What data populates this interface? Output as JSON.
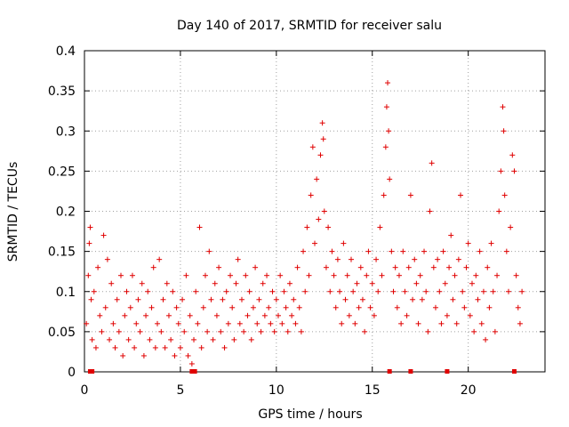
{
  "chart_data": {
    "type": "scatter",
    "title": "Day 140 of 2017, SRMTID for receiver salu",
    "xlabel": "GPS time / hours",
    "ylabel": "SRMTID / TECUs",
    "xlim": [
      0,
      24
    ],
    "ylim": [
      0,
      0.4
    ],
    "xticks": [
      0,
      5,
      10,
      15,
      20
    ],
    "yticks": [
      0,
      0.05,
      0.1,
      0.15,
      0.2,
      0.25,
      0.3,
      0.35,
      0.4
    ],
    "xtick_labels": [
      "0",
      "5",
      "10",
      "15",
      "20"
    ],
    "ytick_labels": [
      "0",
      "0.05",
      "0.1",
      "0.15",
      "0.2",
      "0.25",
      "0.3",
      "0.35",
      "0.4"
    ],
    "grid": true,
    "marker": "+",
    "color": "#e00000",
    "series": [
      {
        "name": "SRMTID",
        "points": [
          [
            0.1,
            0.06
          ],
          [
            0.2,
            0.12
          ],
          [
            0.25,
            0.16
          ],
          [
            0.3,
            0.18
          ],
          [
            0.35,
            0.09
          ],
          [
            0.4,
            0.04
          ],
          [
            0.5,
            0.1
          ],
          [
            0.6,
            0.03
          ],
          [
            0.7,
            0.13
          ],
          [
            0.8,
            0.07
          ],
          [
            0.9,
            0.05
          ],
          [
            1.0,
            0.17
          ],
          [
            1.1,
            0.08
          ],
          [
            1.2,
            0.14
          ],
          [
            1.3,
            0.04
          ],
          [
            1.4,
            0.11
          ],
          [
            1.5,
            0.06
          ],
          [
            1.6,
            0.03
          ],
          [
            1.7,
            0.09
          ],
          [
            1.8,
            0.05
          ],
          [
            1.9,
            0.12
          ],
          [
            2.0,
            0.02
          ],
          [
            2.1,
            0.07
          ],
          [
            2.2,
            0.1
          ],
          [
            2.3,
            0.04
          ],
          [
            2.4,
            0.08
          ],
          [
            2.5,
            0.12
          ],
          [
            2.6,
            0.03
          ],
          [
            2.7,
            0.06
          ],
          [
            2.8,
            0.09
          ],
          [
            2.9,
            0.05
          ],
          [
            3.0,
            0.11
          ],
          [
            3.1,
            0.02
          ],
          [
            3.2,
            0.07
          ],
          [
            3.3,
            0.1
          ],
          [
            3.4,
            0.04
          ],
          [
            3.5,
            0.08
          ],
          [
            3.6,
            0.13
          ],
          [
            3.7,
            0.03
          ],
          [
            3.8,
            0.06
          ],
          [
            3.9,
            0.14
          ],
          [
            4.0,
            0.05
          ],
          [
            4.1,
            0.09
          ],
          [
            4.2,
            0.03
          ],
          [
            4.3,
            0.11
          ],
          [
            4.4,
            0.07
          ],
          [
            4.5,
            0.04
          ],
          [
            4.6,
            0.1
          ],
          [
            4.7,
            0.02
          ],
          [
            4.8,
            0.08
          ],
          [
            4.9,
            0.06
          ],
          [
            5.0,
            0.03
          ],
          [
            5.1,
            0.09
          ],
          [
            5.2,
            0.05
          ],
          [
            5.3,
            0.12
          ],
          [
            5.4,
            0.02
          ],
          [
            5.5,
            0.07
          ],
          [
            5.6,
            0.01
          ],
          [
            5.7,
            0.04
          ],
          [
            5.8,
            0.1
          ],
          [
            5.9,
            0.06
          ],
          [
            6.0,
            0.18
          ],
          [
            6.1,
            0.03
          ],
          [
            6.2,
            0.08
          ],
          [
            6.3,
            0.12
          ],
          [
            6.4,
            0.05
          ],
          [
            6.5,
            0.15
          ],
          [
            6.6,
            0.09
          ],
          [
            6.7,
            0.04
          ],
          [
            6.8,
            0.11
          ],
          [
            6.9,
            0.07
          ],
          [
            7.0,
            0.13
          ],
          [
            7.1,
            0.05
          ],
          [
            7.2,
            0.09
          ],
          [
            7.3,
            0.03
          ],
          [
            7.4,
            0.1
          ],
          [
            7.5,
            0.06
          ],
          [
            7.6,
            0.12
          ],
          [
            7.7,
            0.08
          ],
          [
            7.8,
            0.04
          ],
          [
            7.9,
            0.11
          ],
          [
            8.0,
            0.14
          ],
          [
            8.1,
            0.06
          ],
          [
            8.2,
            0.09
          ],
          [
            8.3,
            0.05
          ],
          [
            8.4,
            0.12
          ],
          [
            8.5,
            0.07
          ],
          [
            8.6,
            0.1
          ],
          [
            8.7,
            0.04
          ],
          [
            8.8,
            0.08
          ],
          [
            8.9,
            0.13
          ],
          [
            9.0,
            0.06
          ],
          [
            9.1,
            0.09
          ],
          [
            9.2,
            0.05
          ],
          [
            9.3,
            0.11
          ],
          [
            9.4,
            0.07
          ],
          [
            9.5,
            0.12
          ],
          [
            9.6,
            0.08
          ],
          [
            9.7,
            0.06
          ],
          [
            9.8,
            0.1
          ],
          [
            9.9,
            0.05
          ],
          [
            10.0,
            0.09
          ],
          [
            10.1,
            0.07
          ],
          [
            10.2,
            0.12
          ],
          [
            10.3,
            0.06
          ],
          [
            10.4,
            0.1
          ],
          [
            10.5,
            0.08
          ],
          [
            10.6,
            0.05
          ],
          [
            10.7,
            0.11
          ],
          [
            10.8,
            0.07
          ],
          [
            10.9,
            0.09
          ],
          [
            11.0,
            0.06
          ],
          [
            11.1,
            0.13
          ],
          [
            11.2,
            0.08
          ],
          [
            11.3,
            0.05
          ],
          [
            11.4,
            0.15
          ],
          [
            11.5,
            0.1
          ],
          [
            11.6,
            0.18
          ],
          [
            11.7,
            0.12
          ],
          [
            11.8,
            0.22
          ],
          [
            11.9,
            0.28
          ],
          [
            12.0,
            0.16
          ],
          [
            12.1,
            0.24
          ],
          [
            12.2,
            0.19
          ],
          [
            12.3,
            0.27
          ],
          [
            12.4,
            0.31
          ],
          [
            12.45,
            0.29
          ],
          [
            12.5,
            0.2
          ],
          [
            12.6,
            0.13
          ],
          [
            12.7,
            0.18
          ],
          [
            12.8,
            0.1
          ],
          [
            12.9,
            0.15
          ],
          [
            13.0,
            0.12
          ],
          [
            13.1,
            0.08
          ],
          [
            13.2,
            0.14
          ],
          [
            13.3,
            0.1
          ],
          [
            13.4,
            0.06
          ],
          [
            13.5,
            0.16
          ],
          [
            13.6,
            0.09
          ],
          [
            13.7,
            0.12
          ],
          [
            13.8,
            0.07
          ],
          [
            13.9,
            0.14
          ],
          [
            14.0,
            0.1
          ],
          [
            14.1,
            0.06
          ],
          [
            14.2,
            0.11
          ],
          [
            14.3,
            0.08
          ],
          [
            14.4,
            0.13
          ],
          [
            14.5,
            0.09
          ],
          [
            14.6,
            0.05
          ],
          [
            14.7,
            0.12
          ],
          [
            14.8,
            0.15
          ],
          [
            14.9,
            0.08
          ],
          [
            15.0,
            0.11
          ],
          [
            15.1,
            0.07
          ],
          [
            15.2,
            0.14
          ],
          [
            15.3,
            0.1
          ],
          [
            15.4,
            0.18
          ],
          [
            15.5,
            0.12
          ],
          [
            15.6,
            0.22
          ],
          [
            15.7,
            0.28
          ],
          [
            15.75,
            0.33
          ],
          [
            15.8,
            0.36
          ],
          [
            15.85,
            0.3
          ],
          [
            15.9,
            0.24
          ],
          [
            16.0,
            0.15
          ],
          [
            16.1,
            0.1
          ],
          [
            16.2,
            0.13
          ],
          [
            16.3,
            0.08
          ],
          [
            16.4,
            0.12
          ],
          [
            16.5,
            0.06
          ],
          [
            16.6,
            0.15
          ],
          [
            16.7,
            0.1
          ],
          [
            16.8,
            0.07
          ],
          [
            16.9,
            0.13
          ],
          [
            17.0,
            0.22
          ],
          [
            17.1,
            0.09
          ],
          [
            17.2,
            0.14
          ],
          [
            17.3,
            0.11
          ],
          [
            17.4,
            0.06
          ],
          [
            17.5,
            0.12
          ],
          [
            17.6,
            0.09
          ],
          [
            17.7,
            0.15
          ],
          [
            17.8,
            0.1
          ],
          [
            17.9,
            0.05
          ],
          [
            18.0,
            0.2
          ],
          [
            18.1,
            0.26
          ],
          [
            18.2,
            0.13
          ],
          [
            18.3,
            0.08
          ],
          [
            18.4,
            0.14
          ],
          [
            18.5,
            0.1
          ],
          [
            18.6,
            0.06
          ],
          [
            18.7,
            0.15
          ],
          [
            18.8,
            0.11
          ],
          [
            18.9,
            0.07
          ],
          [
            19.0,
            0.13
          ],
          [
            19.1,
            0.17
          ],
          [
            19.2,
            0.09
          ],
          [
            19.3,
            0.12
          ],
          [
            19.4,
            0.06
          ],
          [
            19.5,
            0.14
          ],
          [
            19.6,
            0.22
          ],
          [
            19.7,
            0.1
          ],
          [
            19.8,
            0.08
          ],
          [
            19.9,
            0.13
          ],
          [
            20.0,
            0.16
          ],
          [
            20.1,
            0.07
          ],
          [
            20.2,
            0.11
          ],
          [
            20.3,
            0.05
          ],
          [
            20.4,
            0.12
          ],
          [
            20.5,
            0.09
          ],
          [
            20.6,
            0.15
          ],
          [
            20.7,
            0.06
          ],
          [
            20.8,
            0.1
          ],
          [
            20.9,
            0.04
          ],
          [
            21.0,
            0.13
          ],
          [
            21.1,
            0.08
          ],
          [
            21.2,
            0.16
          ],
          [
            21.3,
            0.1
          ],
          [
            21.4,
            0.05
          ],
          [
            21.5,
            0.12
          ],
          [
            21.6,
            0.2
          ],
          [
            21.7,
            0.25
          ],
          [
            21.8,
            0.33
          ],
          [
            21.85,
            0.3
          ],
          [
            21.9,
            0.22
          ],
          [
            22.0,
            0.15
          ],
          [
            22.1,
            0.1
          ],
          [
            22.2,
            0.18
          ],
          [
            22.3,
            0.27
          ],
          [
            22.4,
            0.25
          ],
          [
            22.5,
            0.12
          ],
          [
            22.6,
            0.08
          ],
          [
            22.7,
            0.06
          ],
          [
            22.8,
            0.1
          ]
        ],
        "zero_points": [
          0.3,
          0.4,
          5.6,
          5.75,
          15.9,
          17.0,
          18.9,
          22.4
        ]
      }
    ]
  }
}
